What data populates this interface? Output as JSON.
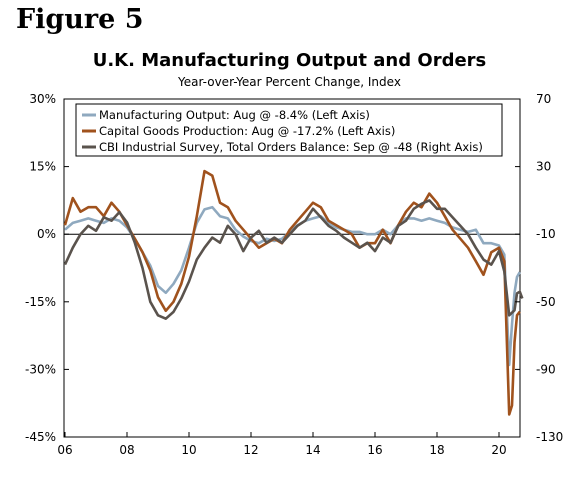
{
  "figure_label": "Figure 5",
  "chart_data": {
    "type": "line",
    "title": "U.K. Manufacturing Output and Orders",
    "subtitle": "Year-over-Year Percent Change, Index",
    "x_ticks": [
      "06",
      "08",
      "10",
      "12",
      "14",
      "16",
      "18",
      "20"
    ],
    "x_range": [
      2006.0,
      2021.5
    ],
    "left_axis": {
      "range": [
        -45,
        30
      ],
      "ticks": [
        30,
        15,
        0,
        -15,
        -30,
        -45
      ],
      "tick_labels": [
        "30%",
        "15%",
        "0%",
        "-15%",
        "-30%",
        "-45%"
      ]
    },
    "right_axis": {
      "range": [
        -130,
        70
      ],
      "ticks": [
        70,
        30,
        -10,
        -50,
        -90,
        -130
      ],
      "tick_labels": [
        "70",
        "30",
        "-10",
        "-50",
        "-90",
        "-130"
      ]
    },
    "legend_position": "top",
    "series": [
      {
        "name": "Manufacturing Output: Aug @ -8.4% (Left Axis)",
        "axis": "left",
        "color": "#8fa9bf",
        "x": [
          2006.0,
          2006.25,
          2006.5,
          2006.75,
          2007.0,
          2007.25,
          2007.5,
          2007.75,
          2008.0,
          2008.25,
          2008.5,
          2008.75,
          2009.0,
          2009.25,
          2009.5,
          2009.75,
          2010.0,
          2010.25,
          2010.5,
          2010.75,
          2011.0,
          2011.25,
          2011.5,
          2011.75,
          2012.0,
          2012.25,
          2012.5,
          2012.75,
          2013.0,
          2013.25,
          2013.5,
          2013.75,
          2014.0,
          2014.25,
          2014.5,
          2014.75,
          2015.0,
          2015.25,
          2015.5,
          2015.75,
          2016.0,
          2016.25,
          2016.5,
          2016.75,
          2017.0,
          2017.25,
          2017.5,
          2017.75,
          2018.0,
          2018.25,
          2018.5,
          2018.75,
          2019.0,
          2019.25,
          2019.5,
          2019.75,
          2020.0,
          2020.17,
          2020.33,
          2020.42,
          2020.5,
          2020.58,
          2020.67
        ],
        "y": [
          1.0,
          2.5,
          3.0,
          3.5,
          3.0,
          2.5,
          3.5,
          3.0,
          1.5,
          -1.0,
          -4.0,
          -7.0,
          -11.5,
          -13.0,
          -11.0,
          -8.0,
          -3.0,
          2.5,
          5.5,
          6.0,
          4.0,
          3.5,
          1.0,
          -0.5,
          -1.5,
          -2.0,
          -1.0,
          -1.5,
          -1.0,
          0.5,
          2.0,
          3.0,
          3.5,
          4.0,
          2.5,
          1.5,
          1.0,
          0.5,
          0.5,
          0.0,
          0.0,
          1.0,
          0.0,
          2.0,
          3.5,
          3.5,
          3.0,
          3.5,
          3.0,
          2.5,
          1.5,
          1.0,
          0.5,
          1.0,
          -2.0,
          -2.0,
          -2.5,
          -4.5,
          -29.0,
          -20.0,
          -13.0,
          -9.5,
          -8.4
        ]
      },
      {
        "name": "Capital Goods Production: Aug @ -17.2% (Left Axis)",
        "axis": "left",
        "color": "#a0521d",
        "x": [
          2006.0,
          2006.25,
          2006.5,
          2006.75,
          2007.0,
          2007.25,
          2007.5,
          2007.75,
          2008.0,
          2008.25,
          2008.5,
          2008.75,
          2009.0,
          2009.25,
          2009.5,
          2009.75,
          2010.0,
          2010.25,
          2010.5,
          2010.75,
          2011.0,
          2011.25,
          2011.5,
          2011.75,
          2012.0,
          2012.25,
          2012.5,
          2012.75,
          2013.0,
          2013.25,
          2013.5,
          2013.75,
          2014.0,
          2014.25,
          2014.5,
          2014.75,
          2015.0,
          2015.25,
          2015.5,
          2015.75,
          2016.0,
          2016.25,
          2016.5,
          2016.75,
          2017.0,
          2017.25,
          2017.5,
          2017.75,
          2018.0,
          2018.25,
          2018.5,
          2018.75,
          2019.0,
          2019.25,
          2019.5,
          2019.75,
          2020.0,
          2020.17,
          2020.33,
          2020.42,
          2020.5,
          2020.58,
          2020.67
        ],
        "y": [
          2.0,
          8.0,
          5.0,
          6.0,
          6.0,
          4.0,
          7.0,
          5.0,
          2.0,
          -1.0,
          -4.0,
          -8.0,
          -14.0,
          -17.0,
          -15.0,
          -11.0,
          -5.0,
          4.0,
          14.0,
          13.0,
          7.0,
          6.0,
          3.0,
          1.0,
          -1.0,
          -3.0,
          -2.0,
          -1.0,
          -2.0,
          1.0,
          3.0,
          5.0,
          7.0,
          6.0,
          3.0,
          2.0,
          1.0,
          0.0,
          -3.0,
          -2.0,
          -2.0,
          1.0,
          -2.0,
          2.0,
          5.0,
          7.0,
          6.0,
          9.0,
          7.0,
          4.0,
          1.0,
          -1.0,
          -3.0,
          -6.0,
          -9.0,
          -4.0,
          -3.0,
          -6.0,
          -40.0,
          -38.0,
          -24.0,
          -18.0,
          -17.2
        ]
      },
      {
        "name": "CBI Industrial Survey, Total Orders Balance: Sep @ -48 (Right Axis)",
        "axis": "right",
        "color": "#5a534d",
        "x": [
          2006.0,
          2006.25,
          2006.5,
          2006.75,
          2007.0,
          2007.25,
          2007.5,
          2007.75,
          2008.0,
          2008.25,
          2008.5,
          2008.75,
          2009.0,
          2009.25,
          2009.5,
          2009.75,
          2010.0,
          2010.25,
          2010.5,
          2010.75,
          2011.0,
          2011.25,
          2011.5,
          2011.75,
          2012.0,
          2012.25,
          2012.5,
          2012.75,
          2013.0,
          2013.25,
          2013.5,
          2013.75,
          2014.0,
          2014.25,
          2014.5,
          2014.75,
          2015.0,
          2015.25,
          2015.5,
          2015.75,
          2016.0,
          2016.25,
          2016.5,
          2016.75,
          2017.0,
          2017.25,
          2017.5,
          2017.75,
          2018.0,
          2018.25,
          2018.5,
          2018.75,
          2019.0,
          2019.25,
          2019.5,
          2019.75,
          2020.0,
          2020.17,
          2020.33,
          2020.5,
          2020.58,
          2020.67,
          2020.75
        ],
        "y": [
          -28.0,
          -18.0,
          -10.0,
          -5.0,
          -8.0,
          0.0,
          -2.0,
          3.0,
          -3.0,
          -15.0,
          -30.0,
          -50.0,
          -58.0,
          -60.0,
          -56.0,
          -48.0,
          -38.0,
          -25.0,
          -18.0,
          -12.0,
          -15.0,
          -5.0,
          -10.0,
          -20.0,
          -12.0,
          -8.0,
          -15.0,
          -12.0,
          -15.0,
          -10.0,
          -5.0,
          -2.0,
          5.0,
          0.0,
          -5.0,
          -8.0,
          -12.0,
          -15.0,
          -18.0,
          -15.0,
          -20.0,
          -12.0,
          -15.0,
          -5.0,
          -2.0,
          5.0,
          8.0,
          10.0,
          5.0,
          5.0,
          0.0,
          -5.0,
          -10.0,
          -18.0,
          -25.0,
          -28.0,
          -20.0,
          -32.0,
          -58.0,
          -55.0,
          -45.0,
          -44.0,
          -48.0
        ]
      }
    ]
  }
}
